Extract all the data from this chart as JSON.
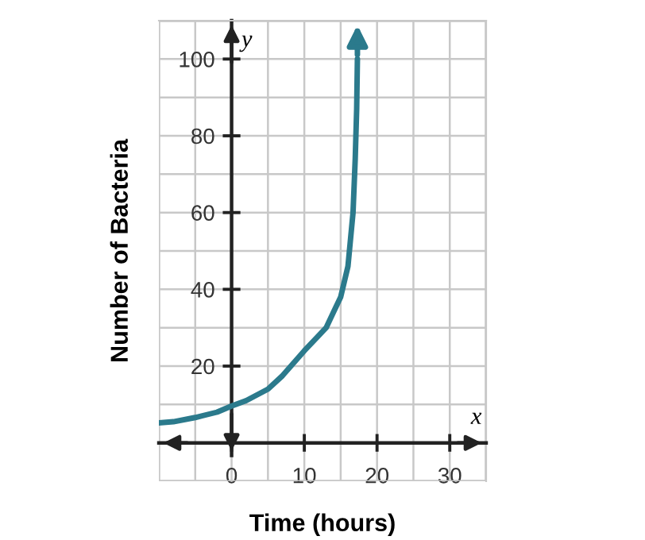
{
  "chart_data": {
    "type": "line",
    "xlabel": "Time (hours)",
    "ylabel": "Number of Bacteria",
    "annotations": [
      "x",
      "y"
    ],
    "x": [
      -10,
      -8,
      -5,
      -2,
      0,
      2,
      5,
      7,
      10,
      12,
      13,
      14,
      15,
      16,
      16.3,
      16.7,
      17,
      17.2,
      17.3
    ],
    "series": [
      {
        "color": "#2b7a8c",
        "values": [
          5.2,
          5.5,
          6.6,
          8,
          9.6,
          11,
          14,
          17.5,
          24,
          28,
          30,
          34,
          38,
          46,
          52,
          60,
          74,
          87,
          100
        ]
      }
    ],
    "xlim": [
      -10,
      35
    ],
    "ylim": [
      -10,
      110
    ],
    "xticks": [
      {
        "value": -10,
        "label": null
      },
      {
        "value": -5,
        "label": null
      },
      0,
      {
        "value": 5,
        "label": null
      },
      10,
      {
        "value": 15,
        "label": null
      },
      20,
      {
        "value": 25,
        "label": null
      },
      30,
      {
        "value": 35,
        "label": null
      }
    ],
    "yticks": [
      {
        "value": -10,
        "label": null
      },
      {
        "value": 0,
        "label": null
      },
      {
        "value": 10,
        "label": null
      },
      20,
      {
        "value": 30,
        "label": null
      },
      40,
      {
        "value": 50,
        "label": null
      },
      60,
      {
        "value": 70,
        "label": null
      },
      80,
      {
        "value": 90,
        "label": null
      },
      100,
      {
        "value": 110,
        "label": null
      }
    ],
    "grid": true,
    "marker": "none",
    "line_style": "solid"
  }
}
